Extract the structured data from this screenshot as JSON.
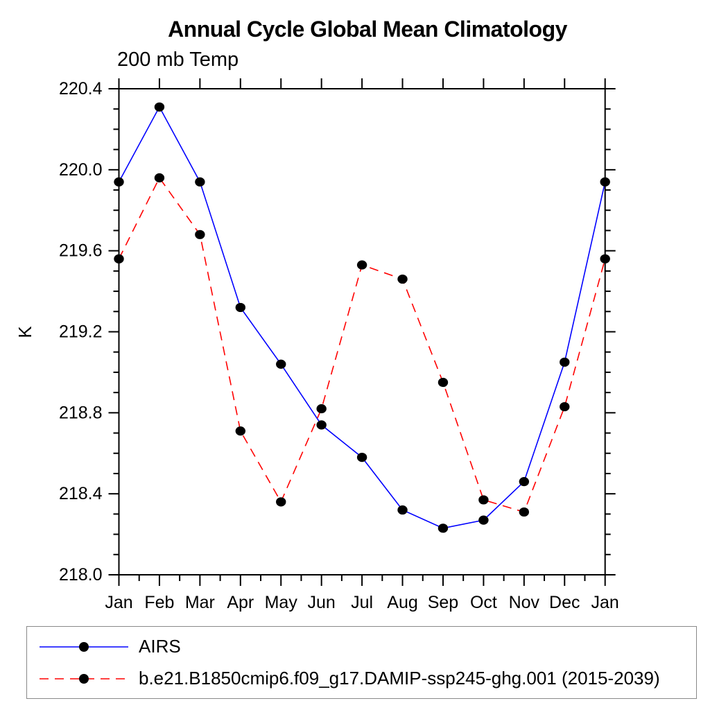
{
  "title": "Annual Cycle Global Mean Climatology",
  "subtitle": "200 mb Temp",
  "chart_data": {
    "type": "line",
    "title": "Annual Cycle Global Mean Climatology",
    "subtitle": "200 mb Temp",
    "xlabel": "",
    "ylabel": "K",
    "categories": [
      "Jan",
      "Feb",
      "Mar",
      "Apr",
      "May",
      "Jun",
      "Jul",
      "Aug",
      "Sep",
      "Oct",
      "Nov",
      "Dec",
      "Jan"
    ],
    "ylim": [
      218.0,
      220.4
    ],
    "ytick_major": 0.4,
    "ytick_minor": 0.1,
    "ytick_labels": [
      "218.0",
      "218.4",
      "218.8",
      "219.2",
      "219.6",
      "220.0",
      "220.4"
    ],
    "grid": false,
    "legend_position": "bottom-box",
    "series": [
      {
        "name": "AIRS",
        "color": "#0000ff",
        "style": "solid",
        "marker": "filled-circle",
        "marker_color": "#000000",
        "values": [
          219.94,
          220.31,
          219.94,
          219.32,
          219.04,
          218.74,
          218.58,
          218.32,
          218.23,
          218.27,
          218.46,
          219.05,
          219.94
        ]
      },
      {
        "name": "b.e21.B1850cmip6.f09_g17.DAMIP-ssp245-ghg.001 (2015-2039)",
        "color": "#ff0000",
        "style": "dashed",
        "marker": "filled-circle",
        "marker_color": "#000000",
        "values": [
          219.56,
          219.96,
          219.68,
          218.71,
          218.36,
          218.82,
          219.53,
          219.46,
          218.95,
          218.37,
          218.31,
          218.83,
          219.56
        ]
      }
    ]
  },
  "colors": {
    "axis": "#000000",
    "text": "#000000",
    "background": "#ffffff",
    "legend_border": "#888888"
  }
}
